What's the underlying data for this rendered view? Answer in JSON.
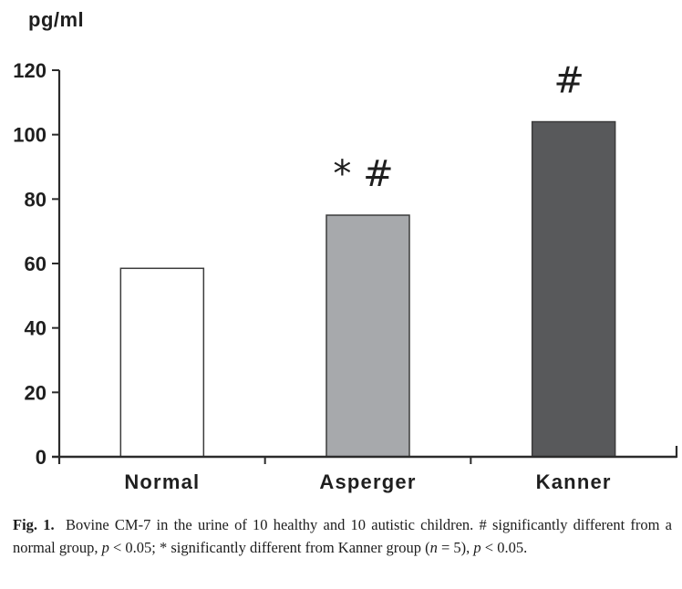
{
  "figure": {
    "caption_segments": [
      {
        "text": "Fig. 1.",
        "style": "bold"
      },
      {
        "text": "  Bovine CM-7 in the urine of 10 healthy and 10 autistic children. # significantly different from a normal group, ",
        "style": "normal"
      },
      {
        "text": "p",
        "style": "italic"
      },
      {
        "text": " < 0.05; * significantly different from Kanner group (",
        "style": "normal"
      },
      {
        "text": "n",
        "style": "italic"
      },
      {
        "text": " = 5), ",
        "style": "normal"
      },
      {
        "text": "p",
        "style": "italic"
      },
      {
        "text": " < 0.05.",
        "style": "normal"
      }
    ]
  },
  "chart_data": {
    "type": "bar",
    "title": "",
    "ylabel": "pg/ml",
    "xlabel": "",
    "categories": [
      "Normal",
      "Asperger",
      "Kanner"
    ],
    "values": [
      58.5,
      75,
      104
    ],
    "annotations": [
      "",
      "* #",
      "#"
    ],
    "bar_colors": [
      "#ffffff",
      "#a7a9ac",
      "#58595b"
    ],
    "bar_border_color": "#3c3c3c",
    "axis_color": "#2b2b2b",
    "text_color": "#1f1f1f",
    "ylim": [
      0,
      120
    ],
    "yticks": [
      0,
      20,
      40,
      60,
      80,
      100,
      120
    ],
    "grid": false,
    "legend": null
  }
}
